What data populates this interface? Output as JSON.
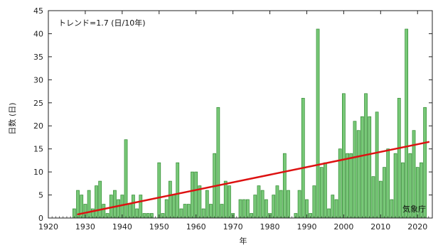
{
  "chart_data": {
    "type": "bar",
    "annotation": "トレンド=1.7 (日/10年)",
    "source": "気象庁",
    "xlabel": "年",
    "ylabel": "日数 (日)",
    "xlim": [
      1920,
      2024
    ],
    "ylim": [
      0,
      45
    ],
    "xticks": [
      1920,
      1930,
      1940,
      1950,
      1960,
      1970,
      1980,
      1990,
      2000,
      2010,
      2020
    ],
    "yticks": [
      0,
      5,
      10,
      15,
      20,
      25,
      30,
      35,
      40,
      45
    ],
    "grid": false,
    "bar_color": "#78c878",
    "bar_edge_color": "#2f8a2f",
    "trend_color": "#dd1111",
    "years": [
      1927,
      1928,
      1929,
      1930,
      1931,
      1932,
      1933,
      1934,
      1935,
      1936,
      1937,
      1938,
      1939,
      1940,
      1941,
      1942,
      1943,
      1944,
      1945,
      1946,
      1947,
      1948,
      1949,
      1950,
      1951,
      1952,
      1953,
      1954,
      1955,
      1956,
      1957,
      1958,
      1959,
      1960,
      1961,
      1962,
      1963,
      1964,
      1965,
      1966,
      1967,
      1968,
      1969,
      1970,
      1971,
      1972,
      1973,
      1974,
      1975,
      1976,
      1977,
      1978,
      1979,
      1980,
      1981,
      1982,
      1983,
      1984,
      1985,
      1986,
      1987,
      1988,
      1989,
      1990,
      1991,
      1992,
      1993,
      1994,
      1995,
      1996,
      1997,
      1998,
      1999,
      2000,
      2001,
      2002,
      2003,
      2004,
      2005,
      2006,
      2007,
      2008,
      2009,
      2010,
      2011,
      2012,
      2013,
      2014,
      2015,
      2016,
      2017,
      2018,
      2019,
      2020,
      2021,
      2022,
      2023
    ],
    "values": [
      2,
      6,
      5,
      3,
      6,
      2,
      7,
      8,
      3,
      1,
      5,
      6,
      4,
      5,
      17,
      3,
      5,
      2,
      5,
      1,
      1,
      1,
      0,
      12,
      1,
      4,
      8,
      5,
      12,
      2,
      3,
      3,
      10,
      10,
      7,
      2,
      6,
      3,
      14,
      24,
      3,
      8,
      7,
      1,
      0,
      4,
      4,
      4,
      1,
      5,
      7,
      6,
      4,
      1,
      5,
      7,
      6,
      14,
      6,
      0,
      1,
      6,
      26,
      4,
      1,
      7,
      41,
      11,
      12,
      2,
      5,
      4,
      15,
      27,
      14,
      14,
      21,
      19,
      22,
      27,
      22,
      9,
      23,
      8,
      11,
      15,
      4,
      14,
      26,
      12,
      41,
      14,
      19,
      11,
      12,
      24,
      0
    ],
    "trend": {
      "start": [
        1928,
        0.8
      ],
      "end": [
        2023,
        16.5
      ]
    }
  }
}
